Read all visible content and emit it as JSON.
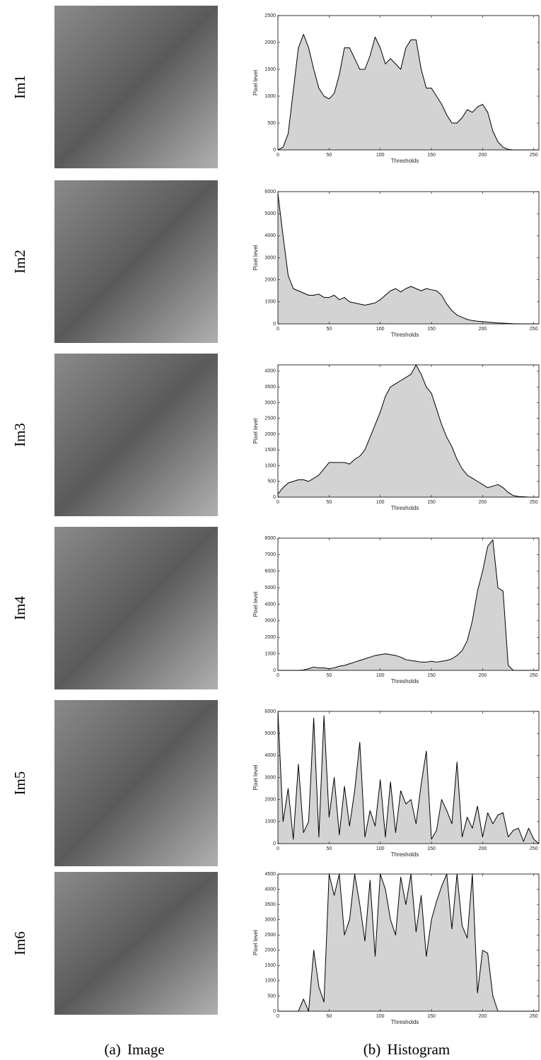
{
  "row_labels": [
    "Im1",
    "Im2",
    "Im3",
    "Im4",
    "Im5",
    "Im6"
  ],
  "captions": [
    "(a) Image",
    "(b) Histogram"
  ],
  "chart_data": [
    {
      "type": "area",
      "xlabel": "Thresholds",
      "ylabel": "Pixel level",
      "color": "#d3d3d3",
      "line_color": "#000000",
      "x": [
        0,
        5,
        10,
        15,
        20,
        25,
        30,
        35,
        40,
        45,
        50,
        55,
        60,
        65,
        70,
        75,
        80,
        85,
        90,
        95,
        100,
        105,
        110,
        115,
        120,
        125,
        130,
        135,
        140,
        145,
        150,
        155,
        160,
        165,
        170,
        175,
        180,
        185,
        190,
        195,
        200,
        205,
        210,
        215,
        220,
        225,
        230,
        235,
        240,
        245,
        250,
        255
      ],
      "values": [
        0,
        50,
        300,
        1100,
        1900,
        2150,
        1900,
        1500,
        1150,
        1000,
        950,
        1050,
        1400,
        1900,
        1900,
        1700,
        1500,
        1500,
        1750,
        2100,
        1900,
        1600,
        1700,
        1600,
        1500,
        1900,
        2050,
        2050,
        1500,
        1150,
        1150,
        1000,
        850,
        650,
        500,
        500,
        600,
        750,
        700,
        800,
        850,
        700,
        350,
        150,
        50,
        10,
        0,
        0,
        0,
        0,
        0,
        0
      ],
      "xlim": [
        0,
        255
      ],
      "xticks": [
        0,
        50,
        100,
        150,
        200,
        250
      ],
      "ylim": [
        0,
        2500
      ],
      "yticks": [
        0,
        500,
        1000,
        1500,
        2000,
        2500
      ]
    },
    {
      "type": "area",
      "xlabel": "Thresholds",
      "ylabel": "Pixel level",
      "color": "#d3d3d3",
      "line_color": "#000000",
      "x": [
        0,
        5,
        10,
        15,
        20,
        25,
        30,
        35,
        40,
        45,
        50,
        55,
        60,
        65,
        70,
        75,
        80,
        85,
        90,
        95,
        100,
        105,
        110,
        115,
        120,
        125,
        130,
        135,
        140,
        145,
        150,
        155,
        160,
        165,
        170,
        175,
        180,
        185,
        190,
        195,
        200,
        205,
        210,
        215,
        220,
        225,
        230,
        235,
        240,
        245,
        250,
        255
      ],
      "values": [
        5900,
        4000,
        2200,
        1600,
        1500,
        1400,
        1300,
        1300,
        1350,
        1200,
        1200,
        1300,
        1100,
        1200,
        1000,
        950,
        900,
        850,
        900,
        950,
        1100,
        1300,
        1500,
        1600,
        1450,
        1600,
        1700,
        1600,
        1500,
        1600,
        1550,
        1500,
        1300,
        900,
        600,
        400,
        300,
        200,
        150,
        120,
        100,
        80,
        60,
        40,
        30,
        20,
        10,
        5,
        0,
        0,
        0,
        0
      ],
      "xlim": [
        0,
        255
      ],
      "xticks": [
        0,
        50,
        100,
        150,
        200,
        250
      ],
      "ylim": [
        0,
        6000
      ],
      "yticks": [
        0,
        1000,
        2000,
        3000,
        4000,
        5000,
        6000
      ]
    },
    {
      "type": "area",
      "xlabel": "Thresholds",
      "ylabel": "Pixel level",
      "color": "#d3d3d3",
      "line_color": "#000000",
      "x": [
        0,
        5,
        10,
        15,
        20,
        25,
        30,
        35,
        40,
        45,
        50,
        55,
        60,
        65,
        70,
        75,
        80,
        85,
        90,
        95,
        100,
        105,
        110,
        115,
        120,
        125,
        130,
        135,
        140,
        145,
        150,
        155,
        160,
        165,
        170,
        175,
        180,
        185,
        190,
        195,
        200,
        205,
        210,
        215,
        220,
        225,
        230,
        235,
        240,
        245,
        250,
        255
      ],
      "values": [
        100,
        300,
        450,
        500,
        550,
        550,
        500,
        600,
        700,
        900,
        1100,
        1100,
        1100,
        1100,
        1050,
        1200,
        1300,
        1500,
        1900,
        2300,
        2700,
        3200,
        3500,
        3600,
        3700,
        3800,
        3900,
        4200,
        3900,
        3500,
        3300,
        2800,
        2300,
        1900,
        1600,
        1200,
        900,
        700,
        600,
        500,
        400,
        300,
        350,
        400,
        300,
        150,
        50,
        20,
        10,
        0,
        0,
        0
      ],
      "xlim": [
        0,
        255
      ],
      "xticks": [
        0,
        50,
        100,
        150,
        200,
        250
      ],
      "ylim": [
        0,
        4200
      ],
      "yticks": [
        0,
        500,
        1000,
        1500,
        2000,
        2500,
        3000,
        3500,
        4000
      ]
    },
    {
      "type": "area",
      "xlabel": "Thresholds",
      "ylabel": "Pixel level",
      "color": "#d3d3d3",
      "line_color": "#000000",
      "x": [
        0,
        5,
        10,
        15,
        20,
        25,
        30,
        35,
        40,
        45,
        50,
        55,
        60,
        65,
        70,
        75,
        80,
        85,
        90,
        95,
        100,
        105,
        110,
        115,
        120,
        125,
        130,
        135,
        140,
        145,
        150,
        155,
        160,
        165,
        170,
        175,
        180,
        185,
        190,
        195,
        200,
        205,
        210,
        215,
        220,
        225,
        230,
        235,
        240,
        245,
        250,
        255
      ],
      "values": [
        0,
        0,
        0,
        0,
        0,
        20,
        100,
        200,
        150,
        150,
        100,
        150,
        250,
        300,
        400,
        500,
        600,
        700,
        800,
        900,
        950,
        1000,
        950,
        900,
        800,
        650,
        600,
        550,
        500,
        500,
        550,
        500,
        550,
        600,
        700,
        900,
        1200,
        1800,
        3000,
        4800,
        6000,
        7500,
        7900,
        5000,
        4800,
        300,
        0,
        0,
        0,
        0,
        0,
        0
      ],
      "xlim": [
        0,
        255
      ],
      "xticks": [
        0,
        50,
        100,
        150,
        200,
        250
      ],
      "ylim": [
        0,
        8000
      ],
      "yticks": [
        0,
        1000,
        2000,
        3000,
        4000,
        5000,
        6000,
        7000,
        8000
      ]
    },
    {
      "type": "area",
      "xlabel": "Thresholds",
      "ylabel": "Pixel level",
      "color": "#d3d3d3",
      "line_color": "#000000",
      "x": [
        0,
        5,
        10,
        15,
        20,
        25,
        30,
        35,
        40,
        45,
        50,
        55,
        60,
        65,
        70,
        75,
        80,
        85,
        90,
        95,
        100,
        105,
        110,
        115,
        120,
        125,
        130,
        135,
        140,
        145,
        150,
        155,
        160,
        165,
        170,
        175,
        180,
        185,
        190,
        195,
        200,
        205,
        210,
        215,
        220,
        225,
        230,
        235,
        240,
        245,
        250,
        255
      ],
      "values": [
        6000,
        1000,
        2500,
        200,
        3600,
        500,
        1000,
        5700,
        300,
        5800,
        1200,
        3000,
        400,
        2600,
        800,
        2400,
        4600,
        300,
        1500,
        800,
        2900,
        300,
        2800,
        500,
        2400,
        1800,
        2000,
        900,
        2700,
        4200,
        200,
        600,
        2000,
        1500,
        900,
        3700,
        300,
        1200,
        700,
        1700,
        300,
        1400,
        900,
        1300,
        1400,
        300,
        600,
        700,
        100,
        700,
        200,
        0
      ],
      "xlim": [
        0,
        255
      ],
      "xticks": [
        0,
        50,
        100,
        150,
        200,
        250
      ],
      "ylim": [
        0,
        6000
      ],
      "yticks": [
        0,
        1000,
        2000,
        3000,
        4000,
        5000,
        6000
      ]
    },
    {
      "type": "area",
      "xlabel": "Thresholds",
      "ylabel": "Pixel level",
      "color": "#d3d3d3",
      "line_color": "#000000",
      "x": [
        0,
        5,
        10,
        15,
        20,
        25,
        30,
        35,
        40,
        45,
        50,
        55,
        60,
        65,
        70,
        75,
        80,
        85,
        90,
        95,
        100,
        105,
        110,
        115,
        120,
        125,
        130,
        135,
        140,
        145,
        150,
        155,
        160,
        165,
        170,
        175,
        180,
        185,
        190,
        195,
        200,
        205,
        210,
        215,
        220,
        225,
        230,
        235,
        240,
        245,
        250,
        255
      ],
      "values": [
        0,
        0,
        0,
        0,
        0,
        400,
        0,
        2000,
        800,
        300,
        4500,
        3800,
        4500,
        2500,
        3000,
        4500,
        3500,
        2300,
        4300,
        1800,
        4500,
        4000,
        3000,
        2500,
        4400,
        3500,
        4500,
        2600,
        3800,
        1800,
        3000,
        3600,
        4100,
        4500,
        2700,
        4500,
        2800,
        2400,
        4500,
        600,
        2000,
        1900,
        500,
        0,
        0,
        0,
        0,
        0,
        0,
        0,
        0,
        0
      ],
      "xlim": [
        0,
        255
      ],
      "xticks": [
        0,
        50,
        100,
        150,
        200,
        250
      ],
      "ylim": [
        0,
        4500
      ],
      "yticks": [
        0,
        500,
        1000,
        1500,
        2000,
        2500,
        3000,
        3500,
        4000,
        4500
      ]
    }
  ]
}
